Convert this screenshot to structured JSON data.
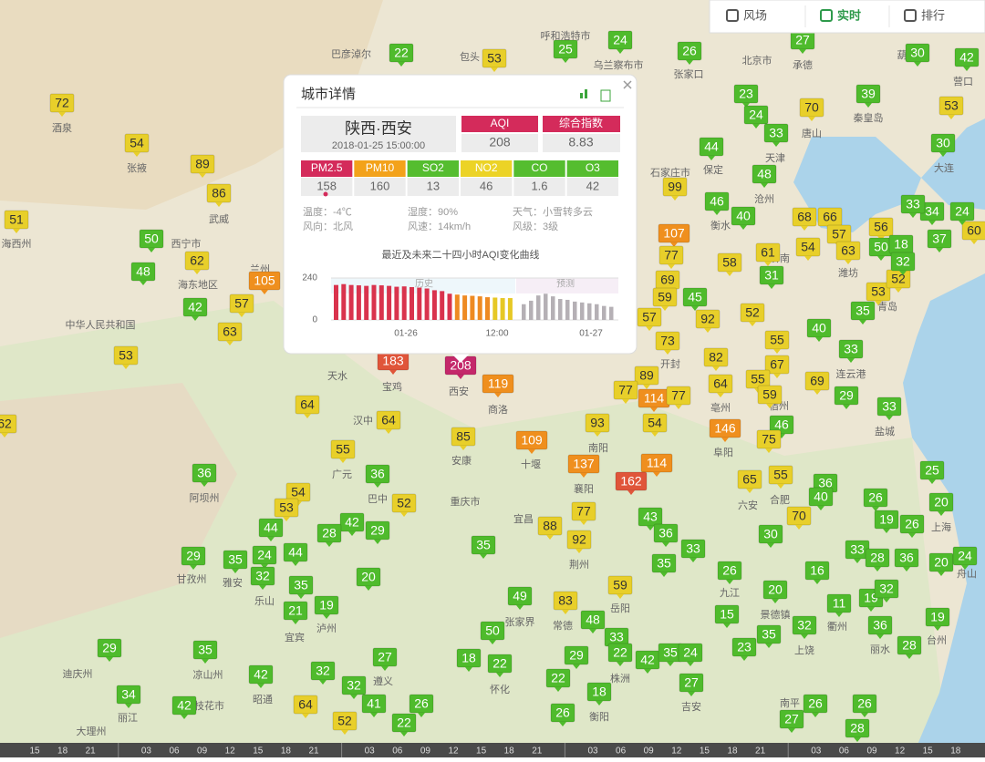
{
  "toolbar": {
    "items": [
      "风场",
      "实时",
      "排行"
    ]
  },
  "map": {
    "markers": [
      72,
      54,
      89,
      86,
      51,
      50,
      48,
      62,
      105,
      57,
      42,
      63,
      53,
      22,
      53,
      25,
      24,
      26,
      27,
      30,
      42,
      23,
      24,
      33,
      70,
      39,
      53,
      30,
      44,
      48,
      99,
      46,
      40,
      68,
      66,
      107,
      77,
      58,
      61,
      54,
      57,
      63,
      56,
      50,
      31,
      69,
      59,
      45,
      92,
      52,
      57,
      73,
      55,
      40,
      35,
      33,
      53,
      52,
      82,
      67,
      64,
      55,
      69,
      59,
      29,
      33,
      89,
      77,
      114,
      77,
      93,
      54,
      146,
      46,
      75,
      183,
      208,
      119,
      64,
      64,
      55,
      85,
      109,
      137,
      114,
      162,
      65,
      55,
      36,
      36,
      54,
      53,
      52,
      77,
      70,
      36,
      40,
      26,
      19,
      26,
      20,
      25,
      44,
      42,
      28,
      29,
      88,
      92,
      43,
      36,
      33,
      30,
      29,
      35,
      24,
      44,
      32,
      35,
      20,
      35,
      35,
      26,
      16,
      33,
      28,
      36,
      20,
      24,
      19,
      21,
      49,
      83,
      59,
      20,
      11,
      19,
      32,
      15,
      48,
      33,
      35,
      32,
      36,
      19,
      50,
      29,
      35,
      27,
      18,
      22,
      29,
      22,
      42,
      35,
      24,
      23,
      28,
      42,
      32,
      32,
      22,
      27,
      34,
      42,
      64,
      41,
      26,
      18,
      52,
      22,
      26,
      26,
      27,
      26,
      28,
      62,
      60,
      37,
      24,
      34,
      33,
      18,
      32
    ],
    "places": [
      "呼和浩特市",
      "包头",
      "巴彦淖尔",
      "乌兰察布市",
      "张家口",
      "北京市",
      "承德",
      "葫芦岛",
      "营口",
      "秦皇岛",
      "唐山",
      "天津",
      "保定",
      "大连",
      "石家庄市",
      "沧州",
      "衡水",
      "济南",
      "潍坊",
      "青岛",
      "开封",
      "海东地区",
      "西宁市",
      "兰州",
      "海西州",
      "酒泉",
      "张掖",
      "武威",
      "中华人民共和国",
      "天水",
      "宝鸡",
      "西安",
      "商洛",
      "汉中",
      "安康",
      "十堰",
      "南阳",
      "襄阳",
      "广元",
      "巴中",
      "重庆市",
      "宜昌",
      "荆州",
      "上海",
      "合肥",
      "六安",
      "阜阳",
      "亳州",
      "宿州",
      "连云港",
      "盐城",
      "舟山",
      "甘孜州",
      "阿坝州",
      "雅安",
      "乐山",
      "宜宾",
      "泸州",
      "遵义",
      "吉安",
      "衡阳",
      "株洲",
      "岳阳",
      "常德",
      "张家界",
      "怀化",
      "九江",
      "景德镇",
      "上饶",
      "衢州",
      "丽水",
      "台州",
      "南平",
      "迪庆州",
      "凉山州",
      "昭通",
      "攀枝花市",
      "丽江",
      "大理州"
    ]
  },
  "popup": {
    "title": "城市详情",
    "city": "陕西·西安",
    "time": "2018-01-25 15:00:00",
    "aqi_label": "AQI",
    "aqi": 208,
    "index_label": "综合指数",
    "index": 8.83,
    "pollutants": [
      {
        "name": "PM2.5",
        "value": 158,
        "color": "#d42b5b"
      },
      {
        "name": "PM10",
        "value": 160,
        "color": "#f3a21a"
      },
      {
        "name": "SO2",
        "value": 13,
        "color": "#55bd2f"
      },
      {
        "name": "NO2",
        "value": 46,
        "color": "#ecd326"
      },
      {
        "name": "CO",
        "value": 1.6,
        "color": "#55bd2f"
      },
      {
        "name": "O3",
        "value": 42,
        "color": "#55bd2f"
      }
    ],
    "weather": [
      "温度：-4℃",
      "湿度：90%",
      "天气：小雪转多云",
      "风向：北风",
      "风速：14km/h",
      "风级：3级"
    ],
    "chart": {
      "title": "最近及未来二十四小时AQI变化曲线",
      "ylim": [
        0,
        240
      ],
      "yticks": [
        0,
        240
      ],
      "history_label": "历史",
      "forecast_label": "预测",
      "history": [
        200,
        205,
        200,
        198,
        195,
        200,
        198,
        195,
        190,
        192,
        188,
        185,
        180,
        170,
        165,
        150,
        145,
        140,
        138,
        135,
        130,
        128,
        125,
        125
      ],
      "forecast": [
        90,
        110,
        140,
        150,
        135,
        120,
        115,
        105,
        100,
        95,
        90,
        80,
        75
      ],
      "x_labels": [
        "01-26",
        "12:00",
        "01-27"
      ]
    }
  },
  "timeline": [
    "15",
    "18",
    "21",
    "03",
    "06",
    "09",
    "12",
    "15",
    "18",
    "21",
    "03",
    "06",
    "09",
    "12",
    "15",
    "18",
    "21",
    "03",
    "06",
    "09",
    "12",
    "15",
    "18",
    "21",
    "03",
    "06",
    "09",
    "12",
    "15",
    "18"
  ]
}
